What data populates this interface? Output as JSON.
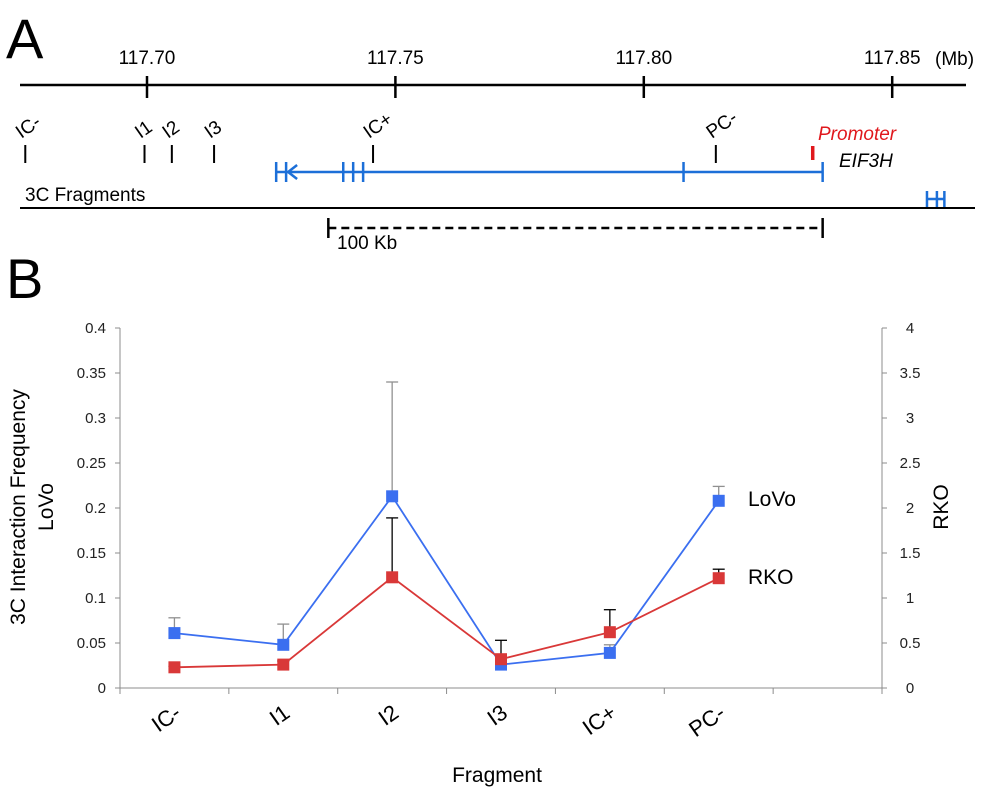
{
  "panel_a": {
    "letter": "A",
    "coord_unit": "(Mb)",
    "ticks": [
      {
        "pos": 117.7,
        "label": "117.70"
      },
      {
        "pos": 117.75,
        "label": "117.75"
      },
      {
        "pos": 117.8,
        "label": "117.80"
      },
      {
        "pos": 117.85,
        "label": "117.85"
      }
    ],
    "fragments_label": "3C Fragments",
    "fragments": [
      {
        "label": "IC-",
        "pos": 117.6755
      },
      {
        "label": "I1",
        "pos": 117.6995
      },
      {
        "label": "I2",
        "pos": 117.705
      },
      {
        "label": "I3",
        "pos": 117.7135
      },
      {
        "label": "IC+",
        "pos": 117.7455
      },
      {
        "label": "PC-",
        "pos": 117.8145
      }
    ],
    "promoter_label": "Promoter",
    "promoter_pos": 117.834,
    "gene_label": "EIF3H",
    "gene_span": [
      117.726,
      117.836
    ],
    "gene_exons": [
      117.726,
      117.728,
      117.7395,
      117.7415,
      117.7435,
      117.808,
      117.836
    ],
    "second_gene_exons": [
      117.857,
      117.859,
      117.8605
    ],
    "scale_label": "100 Kb",
    "scale_span": [
      117.7365,
      117.836
    ],
    "colors": {
      "gene": "#1c6fd8",
      "promoter": "#e0181d",
      "axis": "#000000"
    }
  },
  "panel_b": {
    "letter": "B",
    "chart_data": {
      "type": "line",
      "xlabel": "Fragment",
      "ylabel_left": [
        "3C Interaction Frequency",
        "LoVo"
      ],
      "ylabel_right": "RKO",
      "categories": [
        "IC-",
        "I1",
        "I2",
        "I3",
        "IC+",
        "PC-"
      ],
      "y_left_lim": [
        0,
        0.4
      ],
      "y_left_ticks": [
        "0",
        "0.05",
        "0.1",
        "0.15",
        "0.2",
        "0.25",
        "0.3",
        "0.35",
        "0.4"
      ],
      "y_right_lim": [
        0,
        4
      ],
      "y_right_ticks": [
        "0",
        "0.5",
        "1",
        "1.5",
        "2",
        "2.5",
        "3",
        "3.5",
        "4"
      ],
      "grid": false,
      "series": [
        {
          "name": "LoVo",
          "axis": "left",
          "color": "#3b6ff0",
          "values": [
            0.061,
            0.048,
            0.213,
            0.026,
            0.039,
            0.208
          ],
          "error_upper": [
            0.078,
            0.071,
            0.34,
            0.033,
            0.048,
            0.224
          ],
          "error_color": "#909090"
        },
        {
          "name": "RKO",
          "axis": "right",
          "color": "#d93838",
          "values": [
            0.23,
            0.26,
            1.23,
            0.32,
            0.62,
            1.22
          ],
          "error_upper": [
            0.24,
            0.3,
            1.89,
            0.53,
            0.87,
            1.32
          ],
          "error_color": "#000000"
        }
      ]
    }
  }
}
